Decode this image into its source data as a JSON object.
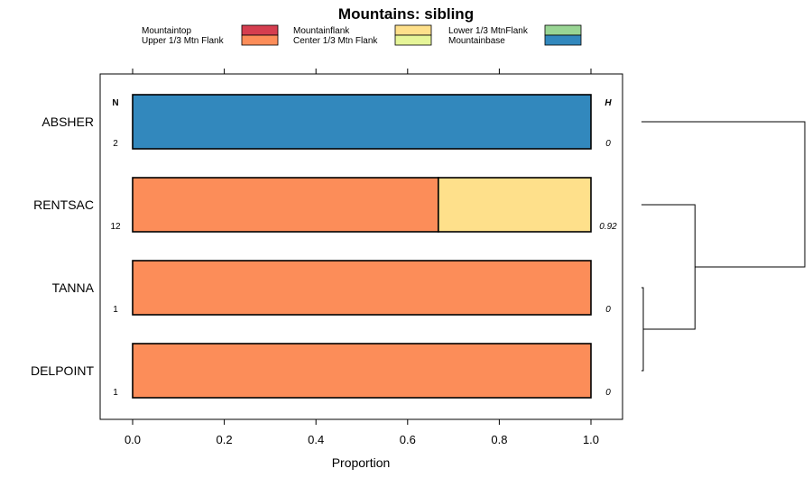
{
  "chart_data": {
    "type": "bar",
    "orientation": "horizontal",
    "stacked": true,
    "title": "Mountains: sibling",
    "xlabel": "Proportion",
    "ylabel": "",
    "xlim": [
      0,
      1
    ],
    "x_ticks": [
      "0.0",
      "0.2",
      "0.4",
      "0.6",
      "0.8",
      "1.0"
    ],
    "x_tick_values": [
      0,
      0.2,
      0.4,
      0.6,
      0.8,
      1.0
    ],
    "legend": [
      {
        "name": "Mountaintop",
        "color": "#D53E4F"
      },
      {
        "name": "Upper 1/3 Mtn Flank",
        "color": "#FC8D59"
      },
      {
        "name": "Mountainflank",
        "color": "#FEE08B"
      },
      {
        "name": "Center 1/3 Mtn Flank",
        "color": "#E6F598"
      },
      {
        "name": "Lower 1/3 MtnFlank",
        "color": "#99D594"
      },
      {
        "name": "Mountainbase",
        "color": "#3288BD"
      }
    ],
    "n_header": "N",
    "h_header": "H",
    "categories": [
      "ABSHER",
      "RENTSAC",
      "TANNA",
      "DELPOINT"
    ],
    "n_values": [
      "2",
      "12",
      "1",
      "1"
    ],
    "h_values": [
      "0",
      "0.92",
      "0",
      "0"
    ],
    "rows": [
      {
        "category": "ABSHER",
        "segments": [
          {
            "series": "Mountainbase",
            "value": 1.0,
            "color": "#3288BD"
          }
        ]
      },
      {
        "category": "RENTSAC",
        "segments": [
          {
            "series": "Upper 1/3 Mtn Flank",
            "value": 0.667,
            "color": "#FC8D59"
          },
          {
            "series": "Mountainflank",
            "value": 0.333,
            "color": "#FEE08B"
          }
        ]
      },
      {
        "category": "TANNA",
        "segments": [
          {
            "series": "Upper 1/3 Mtn Flank",
            "value": 1.0,
            "color": "#FC8D59"
          }
        ]
      },
      {
        "category": "DELPOINT",
        "segments": [
          {
            "series": "Upper 1/3 Mtn Flank",
            "value": 1.0,
            "color": "#FC8D59"
          }
        ]
      }
    ],
    "dendrogram": {
      "leaves": [
        "ABSHER",
        "RENTSAC",
        "TANNA",
        "DELPOINT"
      ],
      "merges": [
        {
          "a": "TANNA",
          "b": "DELPOINT",
          "height": 0.0
        },
        {
          "a": "RENTSAC",
          "b": "TANNA+DELPOINT",
          "height": 0.32
        },
        {
          "a": "ABSHER",
          "b": "RENTSAC+TANNA+DELPOINT",
          "height": 1.0
        }
      ]
    }
  }
}
